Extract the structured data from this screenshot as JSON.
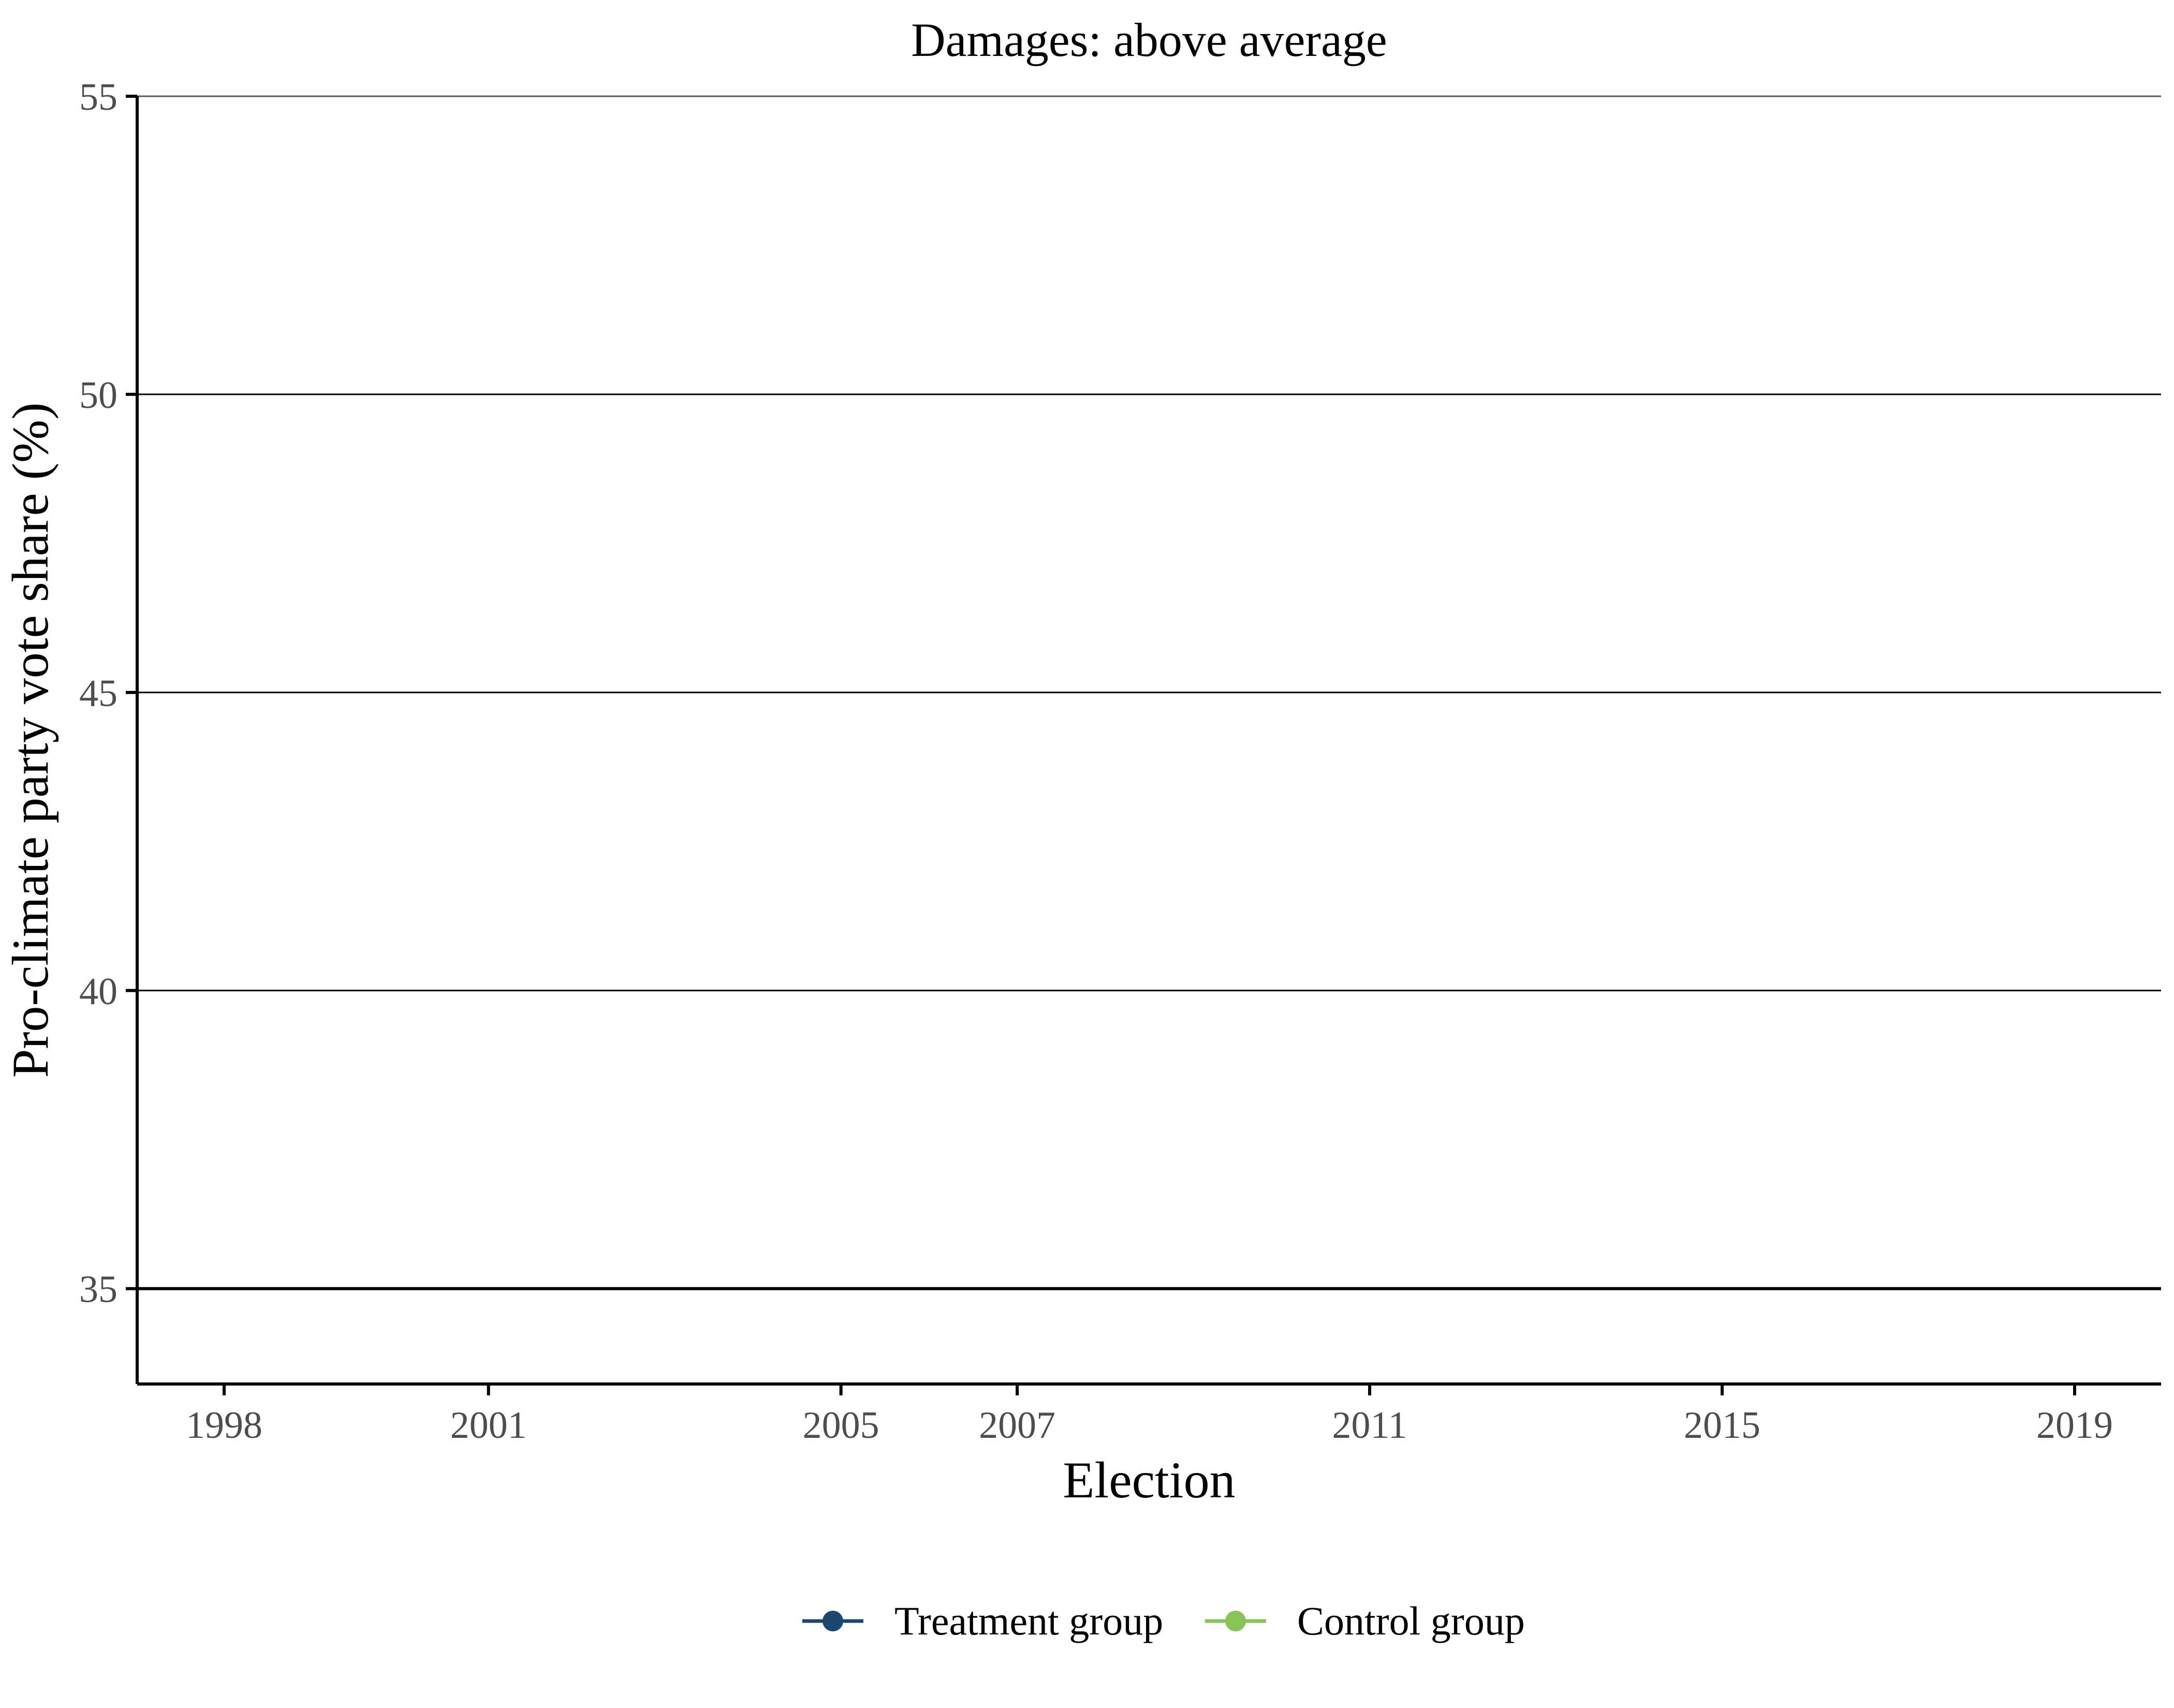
{
  "chart_data": {
    "type": "line",
    "title": "Damages: above average",
    "xlabel": "Election",
    "ylabel": "Pro-climate party vote share (%)",
    "categories": [
      "1998",
      "2001",
      "2005",
      "2007",
      "2011",
      "2015",
      "2019"
    ],
    "x_scale": "date",
    "ylim": [
      33.4,
      55
    ],
    "yticks": [
      35,
      40,
      45,
      50,
      55
    ],
    "y_tick_labels": [
      "35",
      "40",
      "45",
      "50",
      "55"
    ],
    "reference_line_y": 35,
    "grid": "horizontal major gridlines",
    "legend_position": "bottom",
    "series": [
      {
        "name": "Treatment group",
        "color": "#1b4870",
        "values": [
          null,
          null,
          null,
          null,
          null,
          null,
          null
        ]
      },
      {
        "name": "Control group",
        "color": "#86c555",
        "values": [
          null,
          null,
          null,
          null,
          null,
          null,
          null
        ]
      }
    ]
  }
}
